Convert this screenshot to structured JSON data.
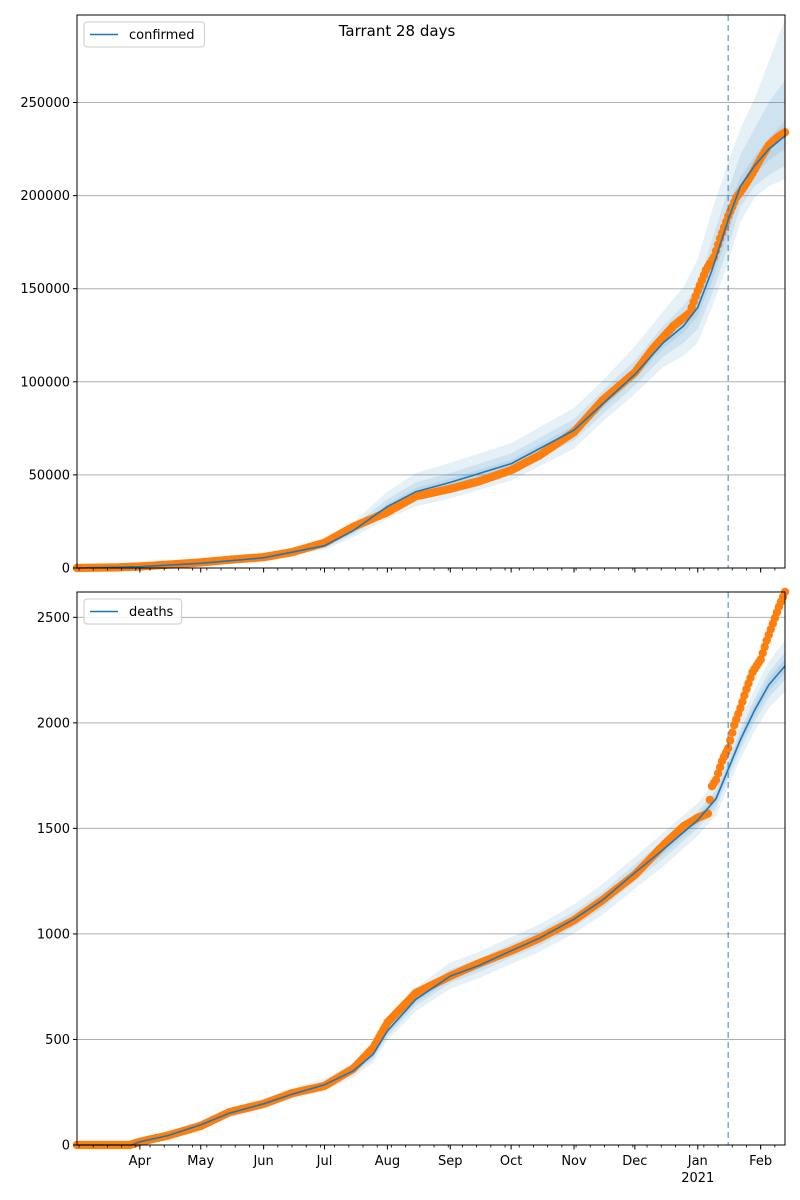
{
  "title": "Tarrant 28 days",
  "colors": {
    "model_line": "#1f77b4",
    "observed": "#ff7f0e",
    "band": "#1f77b4",
    "grid": "#b0b0b0",
    "forecast_line": "#1f77b4"
  },
  "x_axis": {
    "start": "2020-03-01",
    "end": "2021-02-13",
    "month_ticks": [
      {
        "date": "2020-04-01",
        "label": "Apr"
      },
      {
        "date": "2020-05-01",
        "label": "May"
      },
      {
        "date": "2020-06-01",
        "label": "Jun"
      },
      {
        "date": "2020-07-01",
        "label": "Jul"
      },
      {
        "date": "2020-08-01",
        "label": "Aug"
      },
      {
        "date": "2020-09-01",
        "label": "Sep"
      },
      {
        "date": "2020-10-01",
        "label": "Oct"
      },
      {
        "date": "2020-11-01",
        "label": "Nov"
      },
      {
        "date": "2020-12-01",
        "label": "Dec"
      },
      {
        "date": "2021-01-01",
        "label": "Jan"
      },
      {
        "date": "2021-02-01",
        "label": "Feb"
      }
    ],
    "year_label": {
      "date": "2021-01-01",
      "label": "2021"
    },
    "forecast_start": "2021-01-16"
  },
  "chart_data": [
    {
      "type": "line",
      "legend": "confirmed",
      "legend_position": "upper-left",
      "grid": true,
      "ylim": [
        0,
        297000
      ],
      "yticks": [
        0,
        50000,
        100000,
        150000,
        200000,
        250000
      ],
      "model": {
        "x": [
          "2020-03-01",
          "2020-04-01",
          "2020-05-01",
          "2020-06-01",
          "2020-07-01",
          "2020-07-15",
          "2020-08-01",
          "2020-08-15",
          "2020-09-01",
          "2020-10-01",
          "2020-11-01",
          "2020-11-15",
          "2020-12-01",
          "2020-12-15",
          "2020-12-25",
          "2021-01-01",
          "2021-01-08",
          "2021-01-16",
          "2021-01-22",
          "2021-01-29",
          "2021-02-05",
          "2021-02-13"
        ],
        "y": [
          0,
          700,
          2500,
          5500,
          12000,
          20000,
          33000,
          41000,
          46000,
          56000,
          74000,
          88000,
          104000,
          121000,
          130000,
          140000,
          160000,
          187000,
          205000,
          216000,
          225000,
          232000
        ],
        "bands": [
          {
            "lower": [
              0,
              300,
              1800,
              4300,
              9800,
              16500,
              26500,
              33000,
              37500,
              47000,
              64000,
              78500,
              93500,
              108000,
              114000,
              121000,
              140000,
              164000,
              186000,
              199000,
              205000,
              209000
            ],
            "upper": [
              0,
              1100,
              3300,
              6800,
              14500,
              24500,
              41000,
              51000,
              56500,
              67000,
              86000,
              100500,
              119000,
              138000,
              151000,
              166000,
              192000,
              218000,
              236000,
              252000,
              272000,
              295000
            ]
          },
          {
            "lower": [
              0,
              450,
              2100,
              4800,
              10800,
              18000,
              29500,
              36500,
              41500,
              51500,
              68500,
              82500,
              98000,
              113500,
              121000,
              128500,
              147000,
              172500,
              194000,
              205000,
              211000,
              216000
            ],
            "upper": [
              0,
              950,
              2950,
              6200,
              13500,
              22500,
              37000,
              46000,
              51000,
              61500,
              80000,
              95000,
              111500,
              130000,
              141000,
              152000,
              176000,
              203000,
              222000,
              236000,
              250000,
              262000
            ]
          },
          {
            "lower": [
              0,
              580,
              2300,
              5200,
              11400,
              19000,
              31500,
              39000,
              44000,
              54000,
              71500,
              85500,
              101500,
              118000,
              126500,
              135500,
              154000,
              180000,
              200000,
              211000,
              219000,
              225000
            ],
            "upper": [
              0,
              820,
              2700,
              5800,
              12600,
              21000,
              34500,
              43000,
              48000,
              58000,
              76500,
              90500,
              106500,
              124000,
              133500,
              144500,
              166000,
              194000,
              210000,
              221000,
              231000,
              240000
            ]
          }
        ]
      },
      "observed": {
        "x": [
          "2020-03-01",
          "2020-03-20",
          "2020-04-01",
          "2020-04-15",
          "2020-05-01",
          "2020-05-15",
          "2020-06-01",
          "2020-06-15",
          "2020-07-01",
          "2020-07-15",
          "2020-08-01",
          "2020-08-15",
          "2020-09-01",
          "2020-09-15",
          "2020-10-01",
          "2020-10-15",
          "2020-11-01",
          "2020-11-15",
          "2020-12-01",
          "2020-12-10",
          "2020-12-20",
          "2020-12-28",
          "2021-01-01",
          "2021-01-05",
          "2021-01-09",
          "2021-01-12",
          "2021-01-16",
          "2021-01-20",
          "2021-01-24",
          "2021-01-28",
          "2021-02-01",
          "2021-02-05",
          "2021-02-09",
          "2021-02-13"
        ],
        "y": [
          0,
          300,
          800,
          1800,
          3000,
          4400,
          5800,
          8500,
          13500,
          22000,
          30000,
          38500,
          42500,
          46500,
          52500,
          60500,
          73000,
          90000,
          105000,
          118000,
          130000,
          137000,
          149000,
          160000,
          167000,
          177000,
          189000,
          199000,
          205000,
          212000,
          220000,
          227000,
          231000,
          234000
        ]
      }
    },
    {
      "type": "line",
      "legend": "deaths",
      "legend_position": "upper-left",
      "grid": true,
      "ylim": [
        0,
        2620
      ],
      "yticks": [
        0,
        500,
        1000,
        1500,
        2000,
        2500
      ],
      "model": {
        "x": [
          "2020-03-01",
          "2020-03-28",
          "2020-04-01",
          "2020-04-15",
          "2020-05-01",
          "2020-05-15",
          "2020-06-01",
          "2020-06-15",
          "2020-07-01",
          "2020-07-15",
          "2020-07-25",
          "2020-08-01",
          "2020-08-15",
          "2020-09-01",
          "2020-09-15",
          "2020-10-01",
          "2020-10-15",
          "2020-11-01",
          "2020-11-15",
          "2020-12-01",
          "2020-12-15",
          "2021-01-01",
          "2021-01-10",
          "2021-01-16",
          "2021-01-22",
          "2021-01-29",
          "2021-02-05",
          "2021-02-13"
        ],
        "y": [
          0,
          0,
          15,
          45,
          95,
          150,
          195,
          240,
          285,
          350,
          430,
          540,
          690,
          800,
          850,
          920,
          980,
          1070,
          1160,
          1290,
          1400,
          1540,
          1640,
          1780,
          1920,
          2060,
          2180,
          2270
        ],
        "bands": [
          {
            "lower": [
              0,
              0,
              5,
              30,
              75,
              128,
              172,
              215,
              258,
              318,
              392,
              495,
              635,
              740,
              790,
              858,
              915,
              1002,
              1090,
              1215,
              1320,
              1465,
              1560,
              1700,
              1830,
              1960,
              2070,
              2150
            ],
            "upper": [
              0,
              0,
              25,
              62,
              118,
              175,
              220,
              268,
              315,
              385,
              470,
              588,
              745,
              865,
              915,
              985,
              1045,
              1140,
              1235,
              1365,
              1480,
              1620,
              1725,
              1865,
              2015,
              2160,
              2290,
              2390
            ]
          },
          {
            "lower": [
              0,
              0,
              9,
              36,
              83,
              137,
              182,
              226,
              270,
              332,
              408,
              514,
              660,
              768,
              818,
              887,
              944,
              1034,
              1122,
              1250,
              1357,
              1500,
              1597,
              1738,
              1872,
              2006,
              2120,
              2205
            ],
            "upper": [
              0,
              0,
              21,
              54,
              107,
              163,
              208,
              254,
              300,
              368,
              452,
              566,
              720,
              832,
              882,
              953,
              1016,
              1106,
              1198,
              1330,
              1443,
              1580,
              1683,
              1822,
              1968,
              2114,
              2240,
              2335
            ]
          },
          {
            "lower": [
              0,
              0,
              12,
              40,
              89,
              143,
              188,
              233,
              277,
              341,
              419,
              527,
              675,
              784,
              834,
              903,
              962,
              1052,
              1141,
              1270,
              1378,
              1520,
              1618,
              1759,
              1896,
              2033,
              2150,
              2237
            ],
            "upper": [
              0,
              0,
              18,
              50,
              101,
              157,
              202,
              247,
              293,
              359,
              441,
              553,
              705,
              816,
              866,
              937,
              998,
              1088,
              1179,
              1310,
              1422,
              1560,
              1662,
              1801,
              1944,
              2087,
              2210,
              2303
            ]
          }
        ]
      },
      "observed": {
        "x": [
          "2020-03-01",
          "2020-03-27",
          "2020-04-01",
          "2020-04-15",
          "2020-05-01",
          "2020-05-15",
          "2020-06-01",
          "2020-06-15",
          "2020-07-01",
          "2020-07-15",
          "2020-07-25",
          "2020-08-01",
          "2020-08-15",
          "2020-09-01",
          "2020-09-15",
          "2020-10-01",
          "2020-10-15",
          "2020-11-01",
          "2020-11-15",
          "2020-12-01",
          "2020-12-15",
          "2020-12-25",
          "2021-01-01",
          "2021-01-06",
          "2021-01-08",
          "2021-01-10",
          "2021-01-13",
          "2021-01-16",
          "2021-01-19",
          "2021-01-22",
          "2021-01-25",
          "2021-01-28",
          "2021-02-01",
          "2021-02-04",
          "2021-02-07",
          "2021-02-10",
          "2021-02-13"
        ],
        "y": [
          0,
          0,
          15,
          45,
          90,
          155,
          195,
          245,
          280,
          360,
          460,
          580,
          720,
          800,
          860,
          920,
          980,
          1065,
          1160,
          1280,
          1420,
          1510,
          1550,
          1570,
          1700,
          1730,
          1820,
          1880,
          1990,
          2070,
          2160,
          2240,
          2300,
          2390,
          2470,
          2550,
          2620
        ]
      }
    }
  ]
}
